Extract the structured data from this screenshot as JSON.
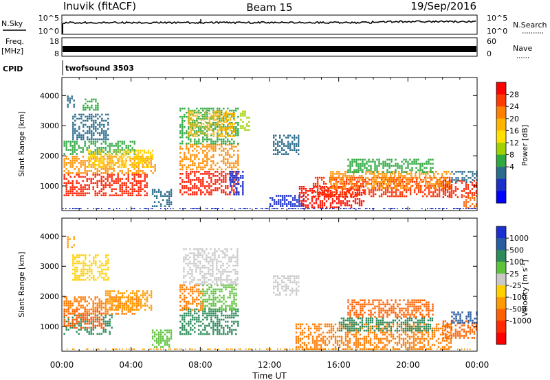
{
  "header": {
    "station": "Inuvik (fitACF)",
    "beam": "Beam 15",
    "date": "19/Sep/2016"
  },
  "top_panels": {
    "nsky_label": "N.Sky",
    "nsky_ticks": [
      "10^5",
      "10^0"
    ],
    "nsearch_label": "N.Search",
    "nsearch_ticks": [
      "10^5",
      "10^0"
    ],
    "freq_label": "Freq.",
    "freq_unit": "[MHz]",
    "freq_ticks": [
      "18",
      "8"
    ],
    "nave_label": "Nave",
    "nave_ticks": [
      "60",
      "0"
    ],
    "cpid_label": "CPID",
    "cpid_value": "twofsound 3503"
  },
  "chart_data": [
    {
      "type": "heatmap",
      "name": "power",
      "ylabel": "Slant Range [km]",
      "ylim": [
        180,
        4600
      ],
      "yticks": [
        "4000",
        "3000",
        "2000",
        "1000"
      ],
      "xlabel": "Time UT",
      "xticks": [
        "00:00",
        "04:00",
        "08:00",
        "12:00",
        "16:00",
        "20:00",
        "00:00"
      ],
      "colorbar": {
        "label": "Power [dB]",
        "ticks": [
          "28",
          "24",
          "20",
          "16",
          "12",
          "8",
          "4"
        ],
        "colors": [
          "#ff0000",
          "#ff3a00",
          "#ff7f00",
          "#ffb400",
          "#ffe000",
          "#9fd200",
          "#2fa840",
          "#2a6c8c",
          "#1a30c8",
          "#0000ff"
        ]
      },
      "regions": [
        {
          "t": [
            0.1,
            5.0
          ],
          "r": [
            650,
            1400
          ],
          "c": "#ff2000"
        },
        {
          "t": [
            0.1,
            5.5
          ],
          "r": [
            1400,
            2000
          ],
          "c": "#ff9000"
        },
        {
          "t": [
            0.1,
            4.3
          ],
          "r": [
            2000,
            2500
          ],
          "c": "#2fa840"
        },
        {
          "t": [
            1.5,
            5.3
          ],
          "r": [
            1600,
            2200
          ],
          "c": "#ffd000"
        },
        {
          "t": [
            0.6,
            2.7
          ],
          "r": [
            2500,
            3400
          ],
          "c": "#2a6c8c"
        },
        {
          "t": [
            1.2,
            2.2
          ],
          "r": [
            3500,
            3900
          ],
          "c": "#2fa840"
        },
        {
          "t": [
            0.3,
            0.8
          ],
          "r": [
            3600,
            4000
          ],
          "c": "#2a6c8c"
        },
        {
          "t": [
            6.8,
            10.2
          ],
          "r": [
            700,
            1500
          ],
          "c": "#ff1800"
        },
        {
          "t": [
            6.8,
            10.2
          ],
          "r": [
            1500,
            2400
          ],
          "c": "#ff8a00"
        },
        {
          "t": [
            6.8,
            10.2
          ],
          "r": [
            2400,
            3600
          ],
          "c": "#2fa840"
        },
        {
          "t": [
            7.3,
            10.0
          ],
          "r": [
            2600,
            3500
          ],
          "c": "#ffb400"
        },
        {
          "t": [
            9.7,
            10.5
          ],
          "r": [
            700,
            1500
          ],
          "c": "#1a30c8"
        },
        {
          "t": [
            10.3,
            10.9
          ],
          "r": [
            2800,
            3500
          ],
          "c": "#9fd200"
        },
        {
          "t": [
            5.2,
            6.4
          ],
          "r": [
            300,
            900
          ],
          "c": "#2a6c8c"
        },
        {
          "t": [
            12.2,
            13.8
          ],
          "r": [
            2000,
            2700
          ],
          "c": "#2a6c8c"
        },
        {
          "t": [
            12.0,
            14.0
          ],
          "r": [
            300,
            700
          ],
          "c": "#1a30c8"
        },
        {
          "t": [
            13.7,
            17.5
          ],
          "r": [
            220,
            1000
          ],
          "c": "#ff1000"
        },
        {
          "t": [
            14.5,
            22.5
          ],
          "r": [
            600,
            1300
          ],
          "c": "#ff3000"
        },
        {
          "t": [
            15.5,
            22.5
          ],
          "r": [
            900,
            1500
          ],
          "c": "#ff9000"
        },
        {
          "t": [
            16.5,
            21.5
          ],
          "r": [
            1400,
            1900
          ],
          "c": "#2fa840"
        },
        {
          "t": [
            22.0,
            24.0
          ],
          "r": [
            600,
            1200
          ],
          "c": "#ff2000"
        },
        {
          "t": [
            22.5,
            24.0
          ],
          "r": [
            1100,
            1500
          ],
          "c": "#2a6c8c"
        },
        {
          "t": [
            23.2,
            24.0
          ],
          "r": [
            250,
            700
          ],
          "c": "#ff6000"
        }
      ]
    },
    {
      "type": "heatmap",
      "name": "velocity",
      "ylabel": "Slant Range [km]",
      "ylim": [
        180,
        4600
      ],
      "yticks": [
        "4000",
        "3000",
        "2000",
        "1000"
      ],
      "xlabel": "Time UT",
      "xticks": [
        "00:00",
        "04:00",
        "08:00",
        "12:00",
        "16:00",
        "20:00",
        "00:00"
      ],
      "colorbar": {
        "label": "Velocity [m s",
        "label_sup": "-1",
        "label_end": "]",
        "ticks": [
          "1000",
          "500",
          "100",
          "25",
          "-25",
          "-100",
          "-500",
          "-1000"
        ],
        "colors": [
          "#1a30d0",
          "#2a5ca0",
          "#2e8a5a",
          "#5ec23c",
          "#c8c8c8",
          "#ffd000",
          "#ff9a00",
          "#ff6000",
          "#ff2a00",
          "#ff0000"
        ]
      },
      "regions": [
        {
          "t": [
            0.1,
            3.0
          ],
          "r": [
            700,
            1400
          ],
          "c": "#2e8a5a"
        },
        {
          "t": [
            0.1,
            4.5
          ],
          "r": [
            1400,
            2000
          ],
          "c": "#ff7a00"
        },
        {
          "t": [
            0.1,
            2.5
          ],
          "r": [
            900,
            1600
          ],
          "c": "#ff5a00"
        },
        {
          "t": [
            2.5,
            5.3
          ],
          "r": [
            1500,
            2200
          ],
          "c": "#ff9a00"
        },
        {
          "t": [
            0.6,
            2.7
          ],
          "r": [
            2500,
            3400
          ],
          "c": "#ffd000"
        },
        {
          "t": [
            0.3,
            0.8
          ],
          "r": [
            3600,
            4000
          ],
          "c": "#ff9a00"
        },
        {
          "t": [
            6.8,
            10.2
          ],
          "r": [
            700,
            1600
          ],
          "c": "#2e8a5a"
        },
        {
          "t": [
            6.8,
            8.2
          ],
          "r": [
            1500,
            2400
          ],
          "c": "#ff7a00"
        },
        {
          "t": [
            8.0,
            10.2
          ],
          "r": [
            1500,
            2400
          ],
          "c": "#5ec23c"
        },
        {
          "t": [
            7.0,
            10.2
          ],
          "r": [
            2400,
            3600
          ],
          "c": "#c8c8c8"
        },
        {
          "t": [
            12.2,
            13.8
          ],
          "r": [
            2000,
            2700
          ],
          "c": "#c8c8c8"
        },
        {
          "t": [
            5.2,
            6.4
          ],
          "r": [
            300,
            900
          ],
          "c": "#5ec23c"
        },
        {
          "t": [
            13.5,
            22.5
          ],
          "r": [
            220,
            1100
          ],
          "c": "#ff7a00"
        },
        {
          "t": [
            16.0,
            21.5
          ],
          "r": [
            800,
            1300
          ],
          "c": "#2e8a5a"
        },
        {
          "t": [
            16.5,
            21.5
          ],
          "r": [
            1300,
            1900
          ],
          "c": "#ff6000"
        },
        {
          "t": [
            22.0,
            24.0
          ],
          "r": [
            600,
            1200
          ],
          "c": "#ff6000"
        },
        {
          "t": [
            22.5,
            24.0
          ],
          "r": [
            1100,
            1500
          ],
          "c": "#2a5ca0"
        }
      ]
    }
  ]
}
